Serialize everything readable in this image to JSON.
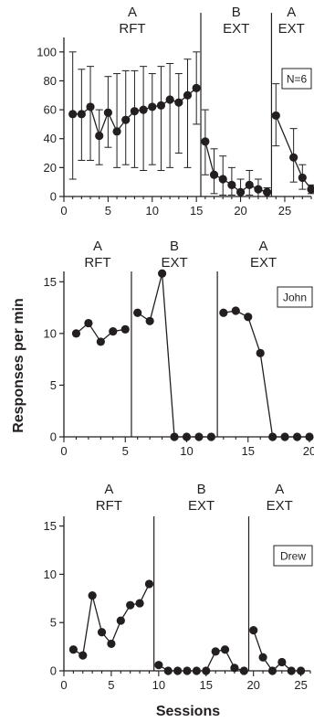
{
  "figure": {
    "ylabel": "Responses per min",
    "xlabel": "Sessions"
  },
  "chart_data": [
    {
      "type": "line",
      "legend": "N=6",
      "xlim": [
        0,
        28
      ],
      "ylim": [
        0,
        110
      ],
      "x_ticks": [
        0,
        5,
        10,
        15,
        20,
        25
      ],
      "y_ticks": [
        0,
        20,
        40,
        60,
        80,
        100
      ],
      "phases": [
        {
          "letter": "A",
          "label": "RFT",
          "sessions": [
            1,
            15
          ]
        },
        {
          "letter": "B",
          "label": "EXT",
          "sessions": [
            16,
            23
          ]
        },
        {
          "letter": "A",
          "label": "EXT",
          "sessions": [
            24,
            28
          ]
        }
      ],
      "phase_lines": [
        15.5,
        23.5
      ],
      "series": [
        {
          "x": [
            1,
            2,
            3,
            4,
            5,
            6,
            7,
            8,
            9,
            10,
            11,
            12,
            13,
            14,
            15
          ],
          "y": [
            57,
            57,
            62,
            42,
            58,
            45,
            53,
            59,
            60,
            62,
            63,
            67,
            65,
            70,
            75
          ],
          "err_low": [
            12,
            25,
            25,
            22,
            34,
            20,
            22,
            20,
            18,
            22,
            18,
            20,
            30,
            20,
            50
          ],
          "err_high": [
            100,
            88,
            90,
            60,
            83,
            85,
            87,
            87,
            90,
            85,
            90,
            92,
            85,
            95,
            100
          ]
        },
        {
          "x": [
            16,
            17,
            18,
            19,
            20,
            21,
            22,
            23
          ],
          "y": [
            38,
            15,
            12,
            8,
            3,
            8,
            5,
            3
          ],
          "err_low": [
            15,
            2,
            1,
            1,
            0,
            1,
            0,
            0
          ],
          "err_high": [
            60,
            33,
            28,
            20,
            12,
            18,
            12,
            6
          ]
        },
        {
          "x": [
            24,
            26,
            27,
            28
          ],
          "y": [
            56,
            27,
            13,
            5
          ],
          "err_low": [
            35,
            10,
            5,
            2
          ],
          "err_high": [
            78,
            47,
            22,
            8
          ]
        }
      ]
    },
    {
      "type": "line",
      "legend": "John",
      "xlim": [
        0,
        20
      ],
      "ylim": [
        0,
        16
      ],
      "x_ticks": [
        0,
        5,
        10,
        15,
        20
      ],
      "y_ticks": [
        0,
        5,
        10,
        15
      ],
      "phases": [
        {
          "letter": "A",
          "label": "RFT",
          "sessions": [
            1,
            5
          ]
        },
        {
          "letter": "B",
          "label": "EXT",
          "sessions": [
            6,
            12
          ]
        },
        {
          "letter": "A",
          "label": "EXT",
          "sessions": [
            13,
            20
          ]
        }
      ],
      "phase_lines": [
        5.5,
        12.5
      ],
      "series": [
        {
          "x": [
            1,
            2,
            3,
            4,
            5
          ],
          "y": [
            10.0,
            11.0,
            9.2,
            10.2,
            10.4
          ]
        },
        {
          "x": [
            6,
            7,
            8,
            9,
            10,
            11,
            12
          ],
          "y": [
            12.0,
            11.2,
            15.8,
            0,
            0,
            0,
            0
          ]
        },
        {
          "x": [
            13,
            14,
            15,
            16,
            17,
            18,
            19,
            20
          ],
          "y": [
            12.0,
            12.2,
            11.6,
            8.1,
            0,
            0,
            0,
            0
          ]
        }
      ]
    },
    {
      "type": "line",
      "legend": "Drew",
      "xlim": [
        0,
        26
      ],
      "ylim": [
        0,
        16
      ],
      "x_ticks": [
        0,
        5,
        10,
        15,
        20,
        25
      ],
      "y_ticks": [
        0,
        5,
        10,
        15
      ],
      "phases": [
        {
          "letter": "A",
          "label": "RFT",
          "sessions": [
            1,
            9
          ]
        },
        {
          "letter": "B",
          "label": "EXT",
          "sessions": [
            10,
            19
          ]
        },
        {
          "letter": "A",
          "label": "EXT",
          "sessions": [
            20,
            25
          ]
        }
      ],
      "phase_lines": [
        9.5,
        19.5
      ],
      "series": [
        {
          "x": [
            1,
            2,
            3,
            4,
            5,
            6,
            7,
            8,
            9
          ],
          "y": [
            2.2,
            1.6,
            7.8,
            4.0,
            2.8,
            5.2,
            6.8,
            7.0,
            9.0
          ]
        },
        {
          "x": [
            10,
            11,
            12,
            13,
            14,
            15,
            16,
            17,
            18,
            19
          ],
          "y": [
            0.6,
            0,
            0,
            0,
            0,
            0,
            2.0,
            2.2,
            0.3,
            0
          ]
        },
        {
          "x": [
            20,
            21,
            22,
            23,
            24,
            25
          ],
          "y": [
            4.2,
            1.4,
            0,
            0.9,
            0,
            0
          ]
        }
      ]
    }
  ]
}
